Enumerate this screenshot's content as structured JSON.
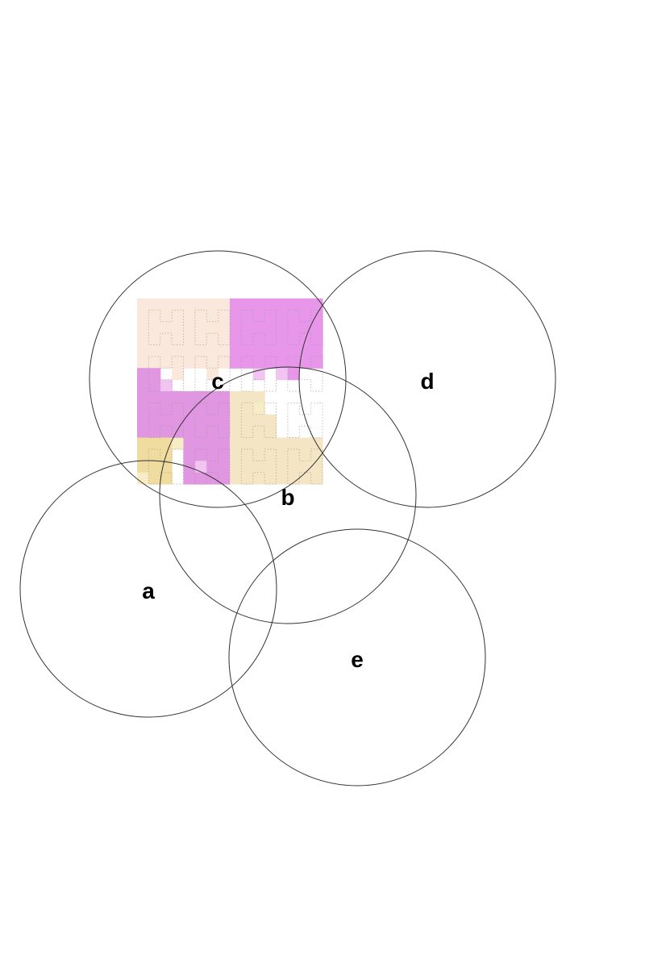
{
  "diagram": {
    "labels": [
      "c",
      "d",
      "b",
      "a",
      "e"
    ],
    "colors": {
      "c": "#fbe8dc",
      "d": "#e896ea",
      "b": "#e096e0",
      "a": "#f0dc9e",
      "e": "#f4e6c4",
      "b-light": "#f2c4f2",
      "a-light": "#f6ecc6"
    }
  }
}
